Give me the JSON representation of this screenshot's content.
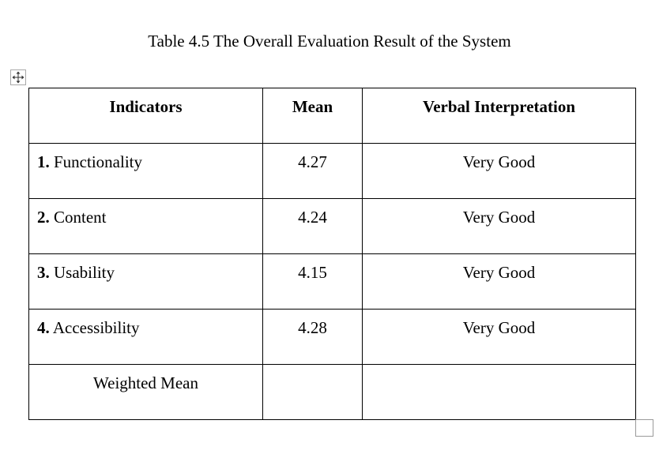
{
  "caption": "Table 4.5 The Overall Evaluation Result of the System",
  "table": {
    "headers": [
      "Indicators",
      "Mean",
      "Verbal Interpretation"
    ],
    "rows": [
      {
        "number": "1.",
        "indicator": "Functionality",
        "mean": "4.27",
        "interpretation": "Very Good"
      },
      {
        "number": "2.",
        "indicator": "Content",
        "mean": "4.24",
        "interpretation": "Very Good"
      },
      {
        "number": "3.",
        "indicator": "Usability",
        "mean": "4.15",
        "interpretation": "Very Good"
      },
      {
        "number": "4.",
        "indicator": "Accessibility",
        "mean": "4.28",
        "interpretation": "Very Good"
      }
    ],
    "footer": {
      "label": "Weighted Mean",
      "mean": "",
      "interpretation": ""
    }
  },
  "icons": {
    "move_handle": "move-arrows-icon",
    "resize_handle": "resize-square-icon"
  }
}
